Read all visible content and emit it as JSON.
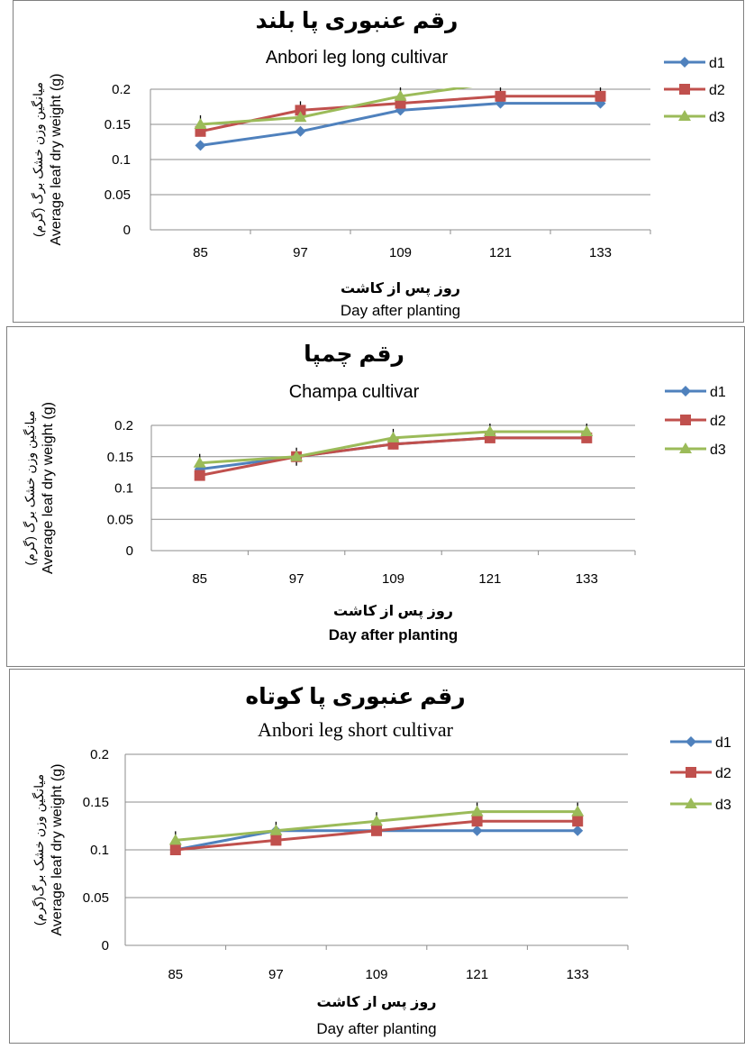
{
  "chart_data": [
    {
      "type": "line",
      "title": "رقم عنبوری پا بلند",
      "subtitle": "Anbori leg long cultivar",
      "xlabel_fa": "روز پس از کاشت",
      "xlabel": "Day after planting",
      "ylabel_fa": "میانگین وزن خشک برگ (گرم)",
      "ylabel": "Average leaf dry weight (g)",
      "categories": [
        "85",
        "97",
        "109",
        "121",
        "133"
      ],
      "ylim": [
        0,
        0.2
      ],
      "yticks": [
        "0",
        "0.05",
        "0.1",
        "0.15",
        "0.2"
      ],
      "grid": true,
      "legend_position": "right",
      "series": [
        {
          "name": "d1",
          "color": "#4f81bd",
          "marker": "diamond",
          "values": [
            0.12,
            0.14,
            0.17,
            0.18,
            0.18
          ]
        },
        {
          "name": "d2",
          "color": "#c0504d",
          "marker": "square",
          "values": [
            0.14,
            0.17,
            0.18,
            0.19,
            0.19
          ]
        },
        {
          "name": "d3",
          "color": "#9bbb59",
          "marker": "triangle",
          "values": [
            0.15,
            0.16,
            0.19,
            0.21,
            0.21
          ]
        }
      ]
    },
    {
      "type": "line",
      "title": "رقم چمپا",
      "subtitle": "Champa cultivar",
      "xlabel_fa": "روز پس از کاشت",
      "xlabel": "Day after planting",
      "ylabel_fa": "میانگین وزن خشک برگ (گرم)",
      "ylabel": "Average leaf dry weight (g)",
      "categories": [
        "85",
        "97",
        "109",
        "121",
        "133"
      ],
      "ylim": [
        0,
        0.2
      ],
      "yticks": [
        "0",
        "0.05",
        "0.1",
        "0.15",
        "0.2"
      ],
      "grid": true,
      "legend_position": "right",
      "series": [
        {
          "name": "d1",
          "color": "#4f81bd",
          "marker": "diamond",
          "values": [
            0.13,
            0.15,
            0.17,
            0.18,
            0.18
          ]
        },
        {
          "name": "d2",
          "color": "#c0504d",
          "marker": "square",
          "values": [
            0.12,
            0.15,
            0.17,
            0.18,
            0.18
          ]
        },
        {
          "name": "d3",
          "color": "#9bbb59",
          "marker": "triangle",
          "values": [
            0.14,
            0.15,
            0.18,
            0.19,
            0.19
          ]
        }
      ]
    },
    {
      "type": "line",
      "title": "رقم عنبوری پا کوتاه",
      "subtitle": "Anbori leg short cultivar",
      "xlabel_fa": "روز پس از کاشت",
      "xlabel": "Day after planting",
      "ylabel_fa": "میانگین وزن خشک برگ(گرم)",
      "ylabel": "Average leaf dry weight (g)",
      "categories": [
        "85",
        "97",
        "109",
        "121",
        "133"
      ],
      "ylim": [
        0,
        0.2
      ],
      "yticks": [
        "0",
        "0.05",
        "0.1",
        "0.15",
        "0.2"
      ],
      "grid": true,
      "legend_position": "right",
      "series": [
        {
          "name": "d1",
          "color": "#4f81bd",
          "marker": "diamond",
          "values": [
            0.1,
            0.12,
            0.12,
            0.12,
            0.12
          ]
        },
        {
          "name": "d2",
          "color": "#c0504d",
          "marker": "square",
          "values": [
            0.1,
            0.11,
            0.12,
            0.13,
            0.13
          ]
        },
        {
          "name": "d3",
          "color": "#9bbb59",
          "marker": "triangle",
          "values": [
            0.11,
            0.12,
            0.13,
            0.14,
            0.14
          ]
        }
      ]
    }
  ]
}
